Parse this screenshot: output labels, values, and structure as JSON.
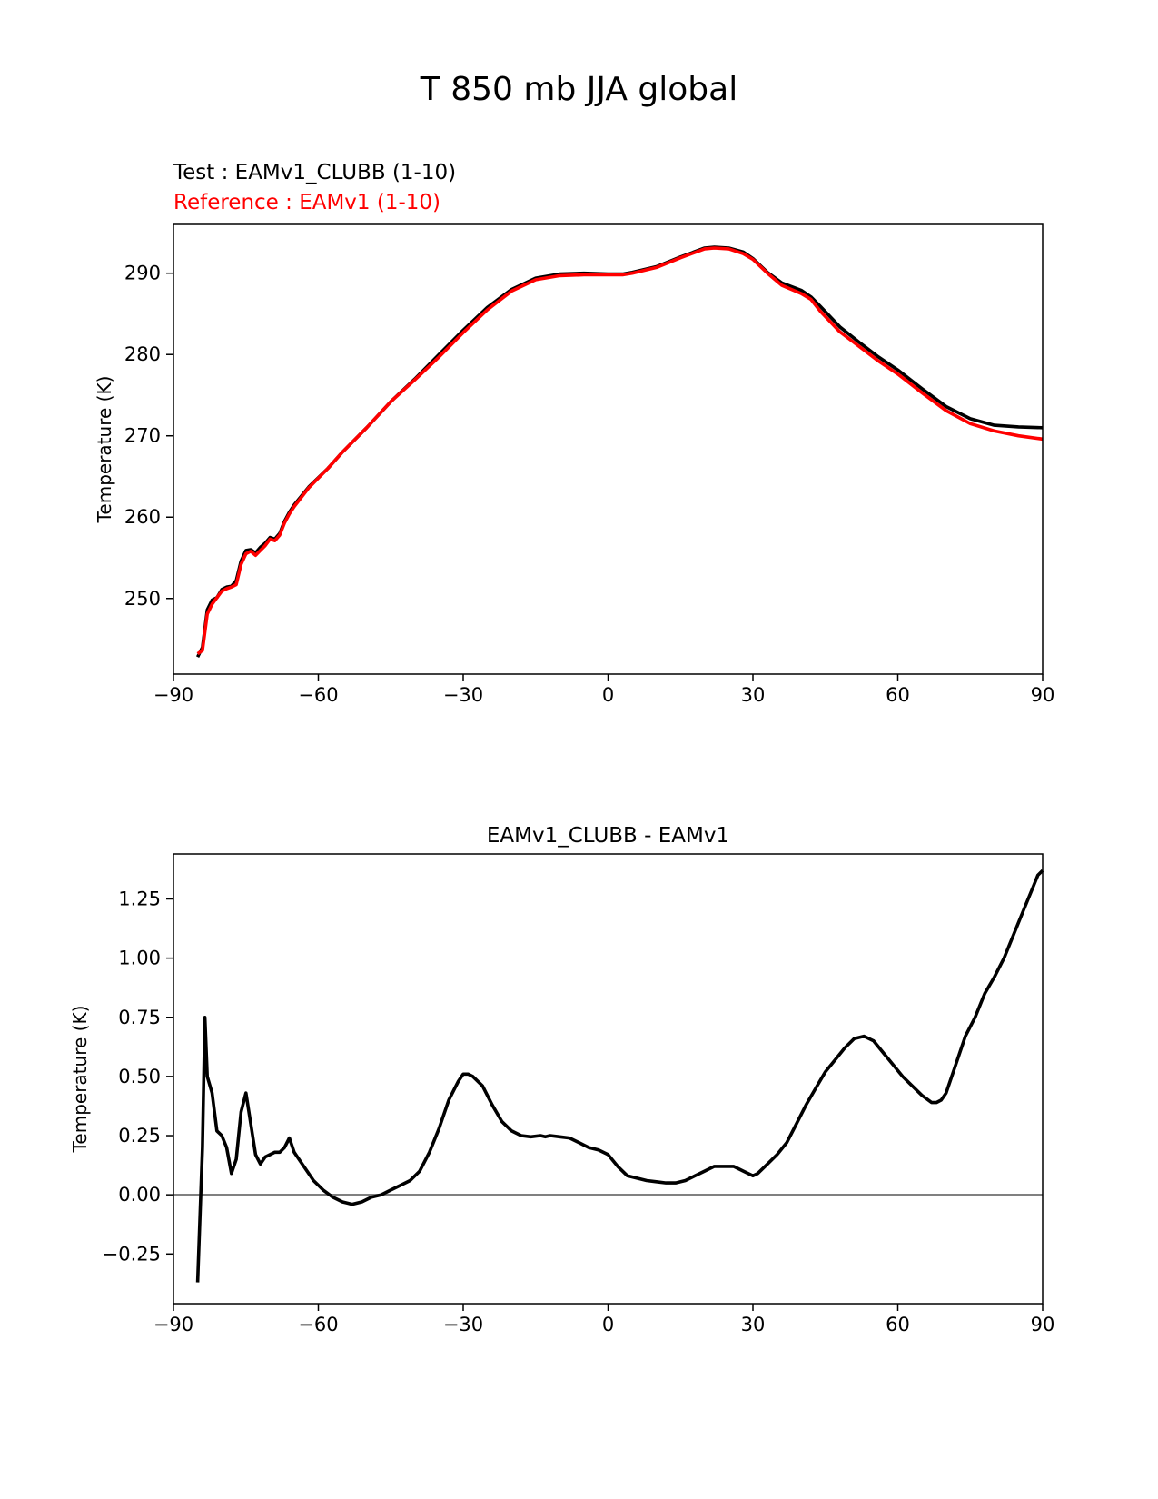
{
  "figure": {
    "title": "T 850 mb JJA global",
    "legend_test": "Test : EAMv1_CLUBB (1-10)",
    "legend_ref": "Reference : EAMv1 (1-10)"
  },
  "colors": {
    "test": "#000000",
    "reference": "#ff0000",
    "zero_line": "#808080",
    "axes": "#000000"
  },
  "chart_data": [
    {
      "type": "line",
      "title": "",
      "xlabel": "",
      "ylabel": "Temperature (K)",
      "xlim": [
        -90,
        90
      ],
      "ylim": [
        240.7,
        296
      ],
      "xticks": [
        -90,
        -60,
        -30,
        0,
        30,
        60,
        90
      ],
      "xtick_labels": [
        "−90",
        "−60",
        "−30",
        "0",
        "30",
        "60",
        "90"
      ],
      "yticks": [
        250,
        260,
        270,
        280,
        290
      ],
      "ytick_labels": [
        "250",
        "260",
        "270",
        "280",
        "290"
      ],
      "series": [
        {
          "name": "Test : EAMv1_CLUBB (1-10)",
          "color": "#000000",
          "x": [
            -85,
            -84,
            -83,
            -82,
            -81,
            -80,
            -79,
            -78,
            -77,
            -76,
            -75,
            -74,
            -73,
            -72,
            -71,
            -70,
            -69,
            -68,
            -67,
            -66,
            -65,
            -62,
            -58,
            -55,
            -50,
            -45,
            -40,
            -35,
            -30,
            -25,
            -20,
            -15,
            -10,
            -5,
            0,
            3,
            5,
            10,
            15,
            20,
            22,
            25,
            28,
            30,
            33,
            36,
            40,
            42,
            44,
            48,
            52,
            56,
            60,
            65,
            70,
            75,
            80,
            85,
            90
          ],
          "y": [
            242.8,
            244.0,
            248.6,
            249.8,
            250.1,
            251.1,
            251.4,
            251.5,
            252.2,
            254.6,
            255.9,
            256.0,
            255.6,
            256.3,
            256.8,
            257.5,
            257.3,
            258.0,
            259.5,
            260.6,
            261.5,
            263.7,
            266.0,
            268.0,
            271.0,
            274.2,
            277.0,
            280.0,
            283.0,
            285.8,
            288.0,
            289.4,
            289.9,
            290.0,
            289.9,
            289.9,
            290.1,
            290.8,
            292.0,
            293.1,
            293.2,
            293.1,
            292.6,
            291.8,
            290.1,
            288.8,
            287.9,
            287.1,
            285.9,
            283.4,
            281.5,
            279.7,
            278.1,
            275.8,
            273.6,
            272.1,
            271.3,
            271.1,
            271.0
          ]
        },
        {
          "name": "Reference : EAMv1 (1-10)",
          "color": "#ff0000",
          "x": [
            -85,
            -84,
            -83,
            -82,
            -81,
            -80,
            -79,
            -78,
            -77,
            -76,
            -75,
            -74,
            -73,
            -72,
            -71,
            -70,
            -69,
            -68,
            -67,
            -66,
            -65,
            -62,
            -58,
            -55,
            -50,
            -45,
            -40,
            -35,
            -30,
            -25,
            -20,
            -15,
            -10,
            -5,
            0,
            3,
            5,
            10,
            15,
            20,
            22,
            25,
            28,
            30,
            33,
            36,
            40,
            42,
            44,
            48,
            52,
            56,
            60,
            65,
            70,
            75,
            80,
            85,
            90
          ],
          "y": [
            243.2,
            243.6,
            248.1,
            249.3,
            250.1,
            250.9,
            251.2,
            251.4,
            251.7,
            254.2,
            255.5,
            255.8,
            255.3,
            255.9,
            256.5,
            257.3,
            257.1,
            257.8,
            259.3,
            260.4,
            261.3,
            263.6,
            266.0,
            268.0,
            271.0,
            274.2,
            276.9,
            279.7,
            282.7,
            285.5,
            287.8,
            289.2,
            289.7,
            289.8,
            289.8,
            289.8,
            290.0,
            290.7,
            291.9,
            293.0,
            293.1,
            293.0,
            292.4,
            291.7,
            290.0,
            288.5,
            287.5,
            286.8,
            285.3,
            282.8,
            281.0,
            279.2,
            277.6,
            275.3,
            273.1,
            271.5,
            270.6,
            270.0,
            269.6
          ]
        }
      ]
    },
    {
      "type": "line",
      "title": "EAMv1_CLUBB - EAMv1",
      "xlabel": "",
      "ylabel": "Temperature (K)",
      "xlim": [
        -90,
        90
      ],
      "ylim": [
        -0.46,
        1.44
      ],
      "xticks": [
        -90,
        -60,
        -30,
        0,
        30,
        60,
        90
      ],
      "xtick_labels": [
        "−90",
        "−60",
        "−30",
        "0",
        "30",
        "60",
        "90"
      ],
      "yticks": [
        -0.25,
        0.0,
        0.25,
        0.5,
        0.75,
        1.0,
        1.25
      ],
      "ytick_labels": [
        "−0.25",
        "0.00",
        "0.25",
        "0.50",
        "0.75",
        "1.00",
        "1.25"
      ],
      "zero_line": 0,
      "series": [
        {
          "name": "EAMv1_CLUBB - EAMv1",
          "color": "#000000",
          "x": [
            -85,
            -84,
            -83.5,
            -83,
            -82,
            -81,
            -80,
            -79,
            -78,
            -77,
            -76,
            -75,
            -74,
            -73,
            -72,
            -71,
            -70,
            -69,
            -68,
            -67,
            -66,
            -65,
            -63,
            -61,
            -59,
            -57,
            -55,
            -53,
            -51,
            -49,
            -47,
            -45,
            -43,
            -41,
            -39,
            -37,
            -35,
            -33,
            -31,
            -30,
            -29,
            -28,
            -26,
            -24,
            -22,
            -20,
            -18,
            -16,
            -14,
            -13,
            -12,
            -10,
            -8,
            -6,
            -4,
            -2,
            0,
            2,
            4,
            6,
            8,
            10,
            12,
            14,
            16,
            18,
            20,
            22,
            24,
            26,
            28,
            30,
            31,
            33,
            35,
            37,
            39,
            41,
            43,
            45,
            47,
            49,
            51,
            53,
            55,
            57,
            59,
            61,
            63,
            65,
            67,
            68,
            69,
            70,
            72,
            74,
            76,
            78,
            80,
            82,
            84,
            86,
            88,
            89,
            90
          ],
          "y": [
            -0.37,
            0.2,
            0.75,
            0.5,
            0.43,
            0.27,
            0.25,
            0.2,
            0.09,
            0.15,
            0.35,
            0.43,
            0.3,
            0.17,
            0.13,
            0.16,
            0.17,
            0.18,
            0.18,
            0.2,
            0.24,
            0.18,
            0.12,
            0.06,
            0.02,
            -0.01,
            -0.03,
            -0.04,
            -0.03,
            -0.01,
            0.0,
            0.02,
            0.04,
            0.06,
            0.1,
            0.18,
            0.28,
            0.4,
            0.48,
            0.51,
            0.51,
            0.5,
            0.46,
            0.38,
            0.31,
            0.27,
            0.25,
            0.245,
            0.25,
            0.245,
            0.25,
            0.245,
            0.24,
            0.22,
            0.2,
            0.19,
            0.17,
            0.12,
            0.08,
            0.07,
            0.06,
            0.055,
            0.05,
            0.05,
            0.06,
            0.08,
            0.1,
            0.12,
            0.12,
            0.12,
            0.1,
            0.08,
            0.09,
            0.13,
            0.17,
            0.22,
            0.3,
            0.38,
            0.45,
            0.52,
            0.57,
            0.62,
            0.66,
            0.67,
            0.65,
            0.6,
            0.55,
            0.5,
            0.46,
            0.42,
            0.39,
            0.39,
            0.4,
            0.43,
            0.55,
            0.67,
            0.75,
            0.85,
            0.92,
            1.0,
            1.1,
            1.2,
            1.3,
            1.35,
            1.37
          ]
        }
      ]
    }
  ]
}
